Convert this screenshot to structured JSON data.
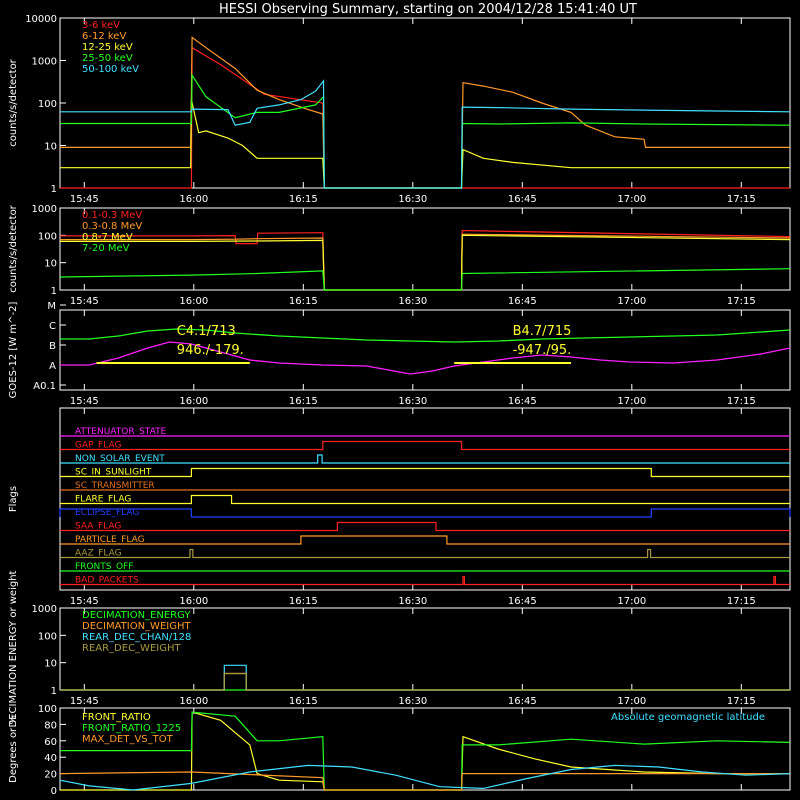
{
  "title": "HESSI Observing Summary, starting on 2004/12/28 15:41:40 UT",
  "colors": {
    "background": "#000000",
    "axes": "#ffffff",
    "red": "#ff2020",
    "orange": "#ff9a2a",
    "yellow": "#ffff30",
    "green": "#20ff20",
    "cyan": "#40e0ff",
    "magenta": "#ff20ff",
    "blue": "#2040ff",
    "olive": "#a89a40",
    "darkorange": "#e07020"
  },
  "x_ticks": [
    "15:45",
    "16:00",
    "16:15",
    "16:30",
    "16:45",
    "17:00",
    "17:15"
  ],
  "x_tick_minutes": [
    3.33,
    18.33,
    33.33,
    48.33,
    63.33,
    78.33,
    93.33
  ],
  "x_range_minutes": [
    0,
    100
  ],
  "chart_data": [
    {
      "type": "line",
      "panel": "lightcurves",
      "ylabel": "counts/s/detector",
      "yscale": "log",
      "ylim": [
        1,
        10000
      ],
      "yticks": [
        "1",
        "10",
        "100",
        "1000",
        "10000"
      ],
      "series": [
        {
          "name": "3-6 keV",
          "color": "red",
          "x": [
            0,
            18,
            18.1,
            22,
            28,
            36,
            36.2,
            55,
            55.1,
            64,
            78,
            81.5,
            100
          ],
          "y": [
            1,
            1,
            2000,
            800,
            160,
            100,
            1,
            1,
            1,
            1,
            1,
            1,
            1
          ]
        },
        {
          "name": "6-12 keV",
          "color": "orange",
          "x": [
            0,
            17.9,
            18.1,
            20,
            24,
            27,
            30,
            34,
            36,
            36.2,
            55,
            55.2,
            58,
            62,
            66,
            70,
            72,
            76,
            80,
            80.2,
            100
          ],
          "y": [
            9,
            9,
            3500,
            2000,
            650,
            200,
            120,
            70,
            55,
            1,
            1,
            300,
            250,
            180,
            100,
            60,
            30,
            16,
            14,
            9,
            9
          ]
        },
        {
          "name": "12-25 keV",
          "color": "yellow",
          "x": [
            0,
            17.9,
            18,
            19,
            20,
            23,
            25,
            27,
            30,
            36,
            36.2,
            55,
            55.2,
            58,
            62,
            70,
            80,
            100
          ],
          "y": [
            3,
            3,
            120,
            20,
            22,
            15,
            10,
            5,
            5,
            5,
            1,
            1,
            8,
            5,
            4,
            3,
            3,
            3
          ]
        },
        {
          "name": "25-50 keV",
          "color": "green",
          "x": [
            0,
            18,
            18.1,
            20,
            24,
            27,
            30,
            35,
            36.1,
            36.2,
            55,
            55.1,
            60,
            70,
            80,
            100
          ],
          "y": [
            33,
            33,
            450,
            140,
            45,
            60,
            60,
            90,
            140,
            1,
            1,
            33,
            32,
            34,
            32,
            30
          ]
        },
        {
          "name": "50-100 keV",
          "color": "cyan",
          "x": [
            0,
            18,
            18.1,
            23,
            24,
            26,
            27,
            30,
            33,
            35,
            36.1,
            36.2,
            55,
            55.1,
            60,
            70,
            80,
            90,
            100
          ],
          "y": [
            62,
            62,
            72,
            70,
            30,
            35,
            75,
            90,
            120,
            190,
            330,
            1,
            1,
            80,
            78,
            72,
            68,
            65,
            62
          ]
        }
      ]
    },
    {
      "type": "line",
      "panel": "high_energy",
      "ylabel": "counts/s/detector",
      "yscale": "log",
      "ylim": [
        1,
        1000
      ],
      "yticks": [
        "1",
        "10",
        "100",
        "1000"
      ],
      "series": [
        {
          "name": "0.1-0.3 MeV",
          "color": "red",
          "x": [
            0,
            18,
            24,
            24.1,
            27,
            27.1,
            36,
            36.2,
            55,
            55.1,
            100
          ],
          "y": [
            95,
            95,
            98,
            50,
            50,
            120,
            125,
            1,
            1,
            150,
            90
          ]
        },
        {
          "name": "0.3-0.8 MeV",
          "color": "orange",
          "x": [
            0,
            18,
            24,
            27,
            36,
            36.2,
            55,
            55.1,
            100
          ],
          "y": [
            70,
            70,
            72,
            75,
            80,
            1,
            1,
            110,
            80
          ]
        },
        {
          "name": "0.8-7 MeV",
          "color": "yellow",
          "x": [
            0,
            18,
            27,
            36,
            36.2,
            55,
            55.1,
            100
          ],
          "y": [
            60,
            60,
            62,
            65,
            1,
            1,
            100,
            70
          ]
        },
        {
          "name": "7-20 MeV",
          "color": "green",
          "x": [
            0,
            18,
            27,
            36,
            36.2,
            55,
            55.1,
            100
          ],
          "y": [
            3,
            3.5,
            4,
            5,
            1,
            1,
            4,
            6
          ]
        }
      ]
    },
    {
      "type": "line",
      "panel": "goes",
      "ylabel": "GOES-12 [W m^-2]",
      "ytick_labels": [
        "A0.1",
        "A",
        "B",
        "C",
        "M"
      ],
      "series": [
        {
          "name": "GOES long",
          "color": "green",
          "x": [
            0,
            4,
            8,
            12,
            16,
            20,
            24,
            30,
            36,
            42,
            48,
            54,
            60,
            66,
            72,
            78,
            84,
            90,
            96,
            100
          ],
          "y": [
            3.05,
            3.05,
            3.2,
            3.45,
            3.55,
            3.5,
            3.35,
            3.2,
            3.1,
            3.0,
            2.95,
            2.9,
            2.95,
            3.05,
            3.1,
            3.15,
            3.2,
            3.25,
            3.4,
            3.5
          ]
        },
        {
          "name": "GOES short",
          "color": "magenta",
          "x": [
            0,
            4,
            8,
            12,
            15,
            18,
            22,
            26,
            30,
            36,
            42,
            45,
            48,
            51,
            54,
            58,
            62,
            66,
            70,
            74,
            78,
            84,
            90,
            96,
            100
          ],
          "y": [
            1.75,
            1.75,
            2.1,
            2.6,
            2.9,
            2.8,
            2.4,
            2.0,
            1.85,
            1.75,
            1.7,
            1.5,
            1.3,
            1.45,
            1.7,
            1.9,
            2.1,
            2.25,
            2.15,
            2.0,
            1.9,
            1.85,
            2.0,
            2.3,
            2.6
          ]
        }
      ],
      "annotations": [
        {
          "text": "C4.1/713",
          "color": "yellow",
          "x": 16,
          "y": 3.25
        },
        {
          "text": "946./-179.",
          "color": "yellow",
          "x": 16,
          "y": 2.3
        },
        {
          "text": "B4.7/715",
          "color": "yellow",
          "x": 62,
          "y": 3.25
        },
        {
          "text": "-947./95.",
          "color": "yellow",
          "x": 62,
          "y": 2.3
        }
      ],
      "flare_bars": [
        {
          "color": "yellow",
          "x0": 5,
          "x1": 26,
          "y": 1.85
        },
        {
          "color": "yellow",
          "x0": 54,
          "x1": 70,
          "y": 1.85
        }
      ]
    },
    {
      "type": "line",
      "panel": "flags",
      "ylabel": "Flags",
      "series": [
        {
          "name": "ATTENUATOR_STATE",
          "color": "magenta",
          "segments": []
        },
        {
          "name": "GAP_FLAG",
          "color": "red",
          "segments": [
            [
              36,
              55
            ]
          ]
        },
        {
          "name": "NON_SOLAR_EVENT",
          "color": "cyan",
          "segments": [
            [
              35.3,
              35.9
            ]
          ]
        },
        {
          "name": "SC_IN_SUNLIGHT",
          "color": "yellow",
          "segments": [
            [
              18,
              81
            ]
          ]
        },
        {
          "name": "SC_TRANSMITTER",
          "color": "darkorange",
          "segments": []
        },
        {
          "name": "FLARE_FLAG",
          "color": "yellow",
          "segments": [
            [
              18,
              23.5
            ]
          ]
        },
        {
          "name": "ECLIPSE_FLAG",
          "color": "blue",
          "segments": [
            [
              0,
              18
            ],
            [
              81,
              100
            ]
          ]
        },
        {
          "name": "SAA_FLAG",
          "color": "red",
          "segments": [
            [
              38,
              51.5
            ]
          ]
        },
        {
          "name": "PARTICLE_FLAG",
          "color": "orange",
          "segments": [
            [
              33,
              53
            ]
          ]
        },
        {
          "name": "AAZ_FLAG",
          "color": "olive",
          "segments": [
            [
              17.8,
              18.2
            ],
            [
              80.5,
              80.9
            ]
          ]
        },
        {
          "name": "FRONTS_OFF",
          "color": "green",
          "segments": []
        },
        {
          "name": "BAD_PACKETS",
          "color": "red",
          "segments": [
            [
              55.2,
              55.4
            ],
            [
              97.8,
              98
            ]
          ]
        }
      ]
    },
    {
      "type": "line",
      "panel": "decimation",
      "ylabel": "DECIMATION ENERGY or weight",
      "yscale": "log",
      "ylim": [
        1,
        1000
      ],
      "yticks": [
        "1",
        "10",
        "100",
        "1000"
      ],
      "series": [
        {
          "name": "DECIMATION_ENERGY",
          "color": "green",
          "x": [
            0,
            100
          ],
          "y": [
            1,
            1
          ]
        },
        {
          "name": "DECIMATION_WEIGHT",
          "color": "orange",
          "x": [
            0,
            22.5,
            22.5,
            25.5,
            25.5,
            100
          ],
          "y": [
            1,
            1,
            4,
            4,
            1,
            1
          ]
        },
        {
          "name": "REAR_DEC_CHAN/128",
          "color": "cyan",
          "x": [
            0,
            22.5,
            22.5,
            25.5,
            25.5,
            100
          ],
          "y": [
            1,
            1,
            8,
            8,
            1,
            1
          ]
        },
        {
          "name": "REAR_DEC_WEIGHT",
          "color": "olive",
          "x": [
            0,
            22.5,
            22.5,
            25.5,
            25.5,
            100
          ],
          "y": [
            1,
            1,
            4,
            4,
            1,
            1
          ]
        }
      ]
    },
    {
      "type": "line",
      "panel": "ratios",
      "ylabel": "Degrees or %",
      "ylim": [
        0,
        100
      ],
      "yticks": [
        "0",
        "20",
        "40",
        "60",
        "80",
        "100"
      ],
      "annotation": "Absolute geomagnetic latitude",
      "series": [
        {
          "name": "FRONT_RATIO",
          "color": "yellow",
          "x": [
            0,
            18,
            18.1,
            22,
            26,
            27,
            30,
            36,
            36.2,
            55,
            55.2,
            60,
            65,
            70,
            75,
            80,
            90,
            100
          ],
          "y": [
            0,
            0,
            95,
            85,
            55,
            20,
            12,
            10,
            0,
            0,
            65,
            50,
            38,
            28,
            25,
            22,
            20,
            20
          ]
        },
        {
          "name": "FRONT_RATIO_1225",
          "color": "green",
          "x": [
            0,
            18,
            18.1,
            24,
            27,
            30,
            36,
            36.2,
            55,
            55.1,
            60,
            70,
            80,
            90,
            100
          ],
          "y": [
            48,
            48,
            95,
            90,
            60,
            60,
            65,
            0,
            0,
            55,
            55,
            62,
            56,
            60,
            58
          ]
        },
        {
          "name": "MAX_DET_VS_TOT",
          "color": "orange",
          "x": [
            0,
            18,
            36,
            36.2,
            55,
            55.1,
            100
          ],
          "y": [
            20,
            22,
            15,
            0,
            0,
            20,
            20
          ]
        },
        {
          "name": "Absolute geomagnetic latitude",
          "color": "cyan",
          "x": [
            0,
            4,
            10,
            18,
            26,
            34,
            40,
            46,
            52,
            58,
            64,
            70,
            76,
            82,
            88,
            94,
            100
          ],
          "y": [
            12,
            5,
            0,
            8,
            22,
            30,
            28,
            18,
            4,
            2,
            14,
            25,
            30,
            28,
            22,
            18,
            20
          ]
        }
      ]
    }
  ]
}
